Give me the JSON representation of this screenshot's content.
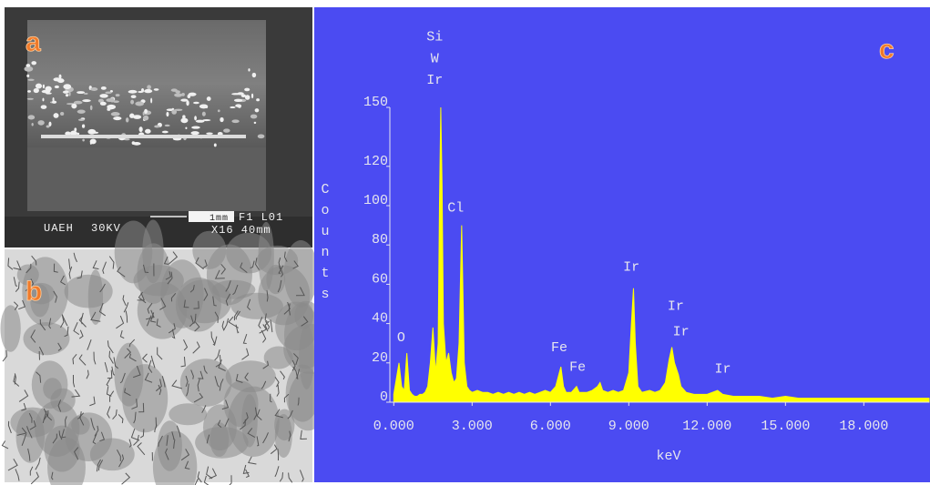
{
  "panels": [
    {
      "label": "a",
      "texts": [
        "UAEH",
        "30KV",
        "1mm",
        "F1 L01",
        "X16 40mm"
      ]
    },
    {
      "label": "b"
    }
  ],
  "chart_data": {
    "type": "area",
    "label": "c",
    "xlabel": "keV",
    "ylabel": "Counts",
    "color": "#ffff00",
    "x": [
      0.0,
      0.1,
      0.2,
      0.3,
      0.4,
      0.5,
      0.6,
      0.7,
      0.8,
      0.9,
      1.0,
      1.1,
      1.2,
      1.3,
      1.4,
      1.5,
      1.6,
      1.7,
      1.75,
      1.8,
      1.85,
      1.9,
      2.0,
      2.1,
      2.2,
      2.3,
      2.4,
      2.5,
      2.6,
      2.7,
      2.8,
      2.9,
      3.0,
      3.2,
      3.4,
      3.6,
      3.8,
      4.0,
      4.2,
      4.4,
      4.6,
      4.8,
      5.0,
      5.2,
      5.4,
      5.6,
      5.8,
      6.0,
      6.2,
      6.4,
      6.5,
      6.6,
      6.8,
      7.0,
      7.1,
      7.4,
      7.6,
      7.8,
      7.9,
      8.0,
      8.2,
      8.4,
      8.6,
      8.8,
      9.0,
      9.1,
      9.18,
      9.25,
      9.35,
      9.5,
      9.8,
      10.0,
      10.2,
      10.4,
      10.55,
      10.65,
      10.75,
      10.9,
      11.0,
      11.2,
      11.5,
      12.0,
      12.4,
      12.6,
      13.0,
      13.5,
      14.0,
      14.5,
      15.0,
      15.5,
      16.0,
      16.5,
      17.0,
      17.5,
      18.0,
      18.5,
      19.0,
      19.5,
      20.0,
      20.5
    ],
    "values": [
      4,
      12,
      20,
      8,
      6,
      25,
      6,
      4,
      3,
      3,
      4,
      4,
      5,
      8,
      20,
      38,
      15,
      30,
      100,
      150,
      110,
      40,
      20,
      25,
      15,
      10,
      12,
      30,
      90,
      20,
      8,
      6,
      5,
      6,
      5,
      5,
      4,
      5,
      4,
      5,
      4,
      5,
      4,
      5,
      4,
      5,
      6,
      5,
      8,
      18,
      8,
      5,
      5,
      8,
      5,
      5,
      6,
      8,
      10,
      6,
      5,
      6,
      5,
      6,
      15,
      40,
      58,
      30,
      8,
      5,
      6,
      5,
      6,
      10,
      22,
      28,
      20,
      14,
      8,
      5,
      4,
      4,
      6,
      4,
      3,
      3,
      3,
      2,
      3,
      2,
      2,
      2,
      2,
      2,
      2,
      2,
      2,
      2,
      2,
      2
    ],
    "xlim": [
      -0.15,
      20.5
    ],
    "xticks": [
      {
        "value": 0,
        "label": "0.000"
      },
      {
        "value": 3,
        "label": "3.000"
      },
      {
        "value": 6,
        "label": "6.000"
      },
      {
        "value": 9,
        "label": "9.000"
      },
      {
        "value": 12,
        "label": "12.000"
      },
      {
        "value": 15,
        "label": "15.000"
      },
      {
        "value": 18,
        "label": "18.000"
      }
    ],
    "ylim": [
      0,
      150
    ],
    "yticks": [
      0,
      20,
      40,
      60,
      80,
      100,
      120,
      150
    ],
    "annotations": [
      {
        "text": "Si",
        "x": 1.57,
        "y": 184
      },
      {
        "text": "W",
        "x": 1.57,
        "y": 173
      },
      {
        "text": "Ir",
        "x": 1.57,
        "y": 162
      },
      {
        "text": "Cl",
        "x": 2.37,
        "y": 97
      },
      {
        "text": "O",
        "x": 0.28,
        "y": 31
      },
      {
        "text": "Fe",
        "x": 6.34,
        "y": 26
      },
      {
        "text": "Fe",
        "x": 7.04,
        "y": 16
      },
      {
        "text": "Ir",
        "x": 9.1,
        "y": 67
      },
      {
        "text": "Ir",
        "x": 10.8,
        "y": 47
      },
      {
        "text": "Ir",
        "x": 11.0,
        "y": 34
      },
      {
        "text": "Ir",
        "x": 12.6,
        "y": 15
      }
    ]
  }
}
